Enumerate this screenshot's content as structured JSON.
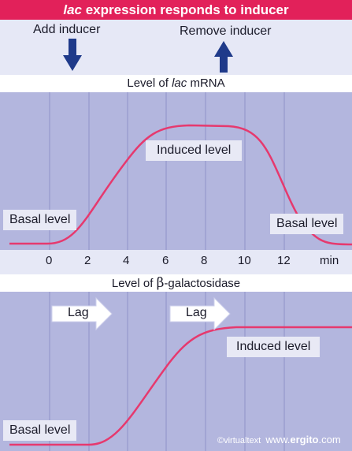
{
  "title": {
    "em": "lac",
    "rest": " expression responds to inducer"
  },
  "events": {
    "add": "Add inducer",
    "remove": "Remove inducer"
  },
  "panel1": {
    "label_prefix": "Level of ",
    "label_em": "lac",
    "label_suffix": " mRNA",
    "basal_left": "Basal level",
    "induced": "Induced level",
    "basal_right": "Basal level"
  },
  "axis": {
    "ticks": [
      "0",
      "2",
      "4",
      "6",
      "8",
      "10",
      "12"
    ],
    "unit": "min"
  },
  "panel2": {
    "label_prefix": "Level of ",
    "label_beta": "β",
    "label_suffix": "-galactosidase",
    "lag1": "Lag",
    "lag2": "Lag",
    "induced": "Induced level",
    "basal": "Basal level"
  },
  "credit": {
    "a": "©virtualtext",
    "b": "www.",
    "c": "ergito",
    "d": ".com"
  },
  "colors": {
    "title_bg": "#e2215a",
    "panel_bg": "#b3b6de",
    "curve": "#e6396e",
    "arrow": "#1f3a8a",
    "gridline": "#8f93c8"
  },
  "icons": {
    "add": "arrow-down-icon",
    "remove": "arrow-up-icon",
    "lag": "arrow-right-icon"
  }
}
